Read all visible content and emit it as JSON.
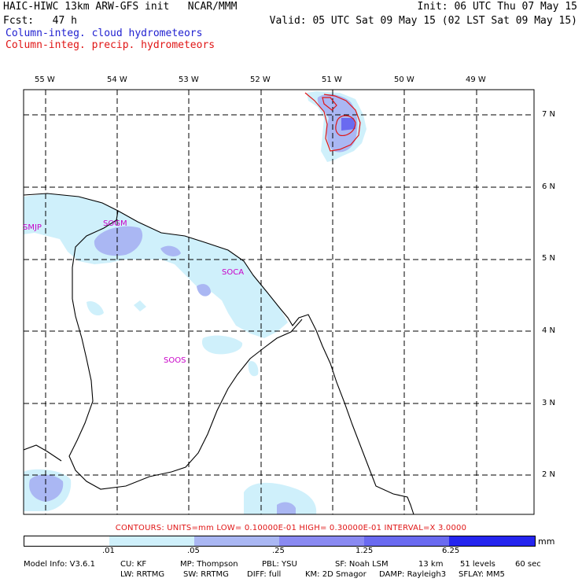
{
  "header": {
    "line1_left": "HAIC-HIWC 13km ARW-GFS init   NCAR/MMM",
    "line2_left": "Fcst:   47 h",
    "line1_right": "Init: 06 UTC Thu 07 May 15",
    "line2_right": "Valid: 05 UTC Sat 09 May 15 (02 LST Sat 09 May 15)"
  },
  "legend": {
    "cloud": "Column-integ. cloud hydrometeors",
    "precip": "Column-integ. precip. hydrometeors",
    "cloud_color": "#1f1fd0",
    "precip_color": "#e01515"
  },
  "lon_labels": [
    "55 W",
    "54 W",
    "53 W",
    "52 W",
    "51 W",
    "50 W",
    "49 W"
  ],
  "lat_labels": [
    "7 N",
    "6 N",
    "5 N",
    "4 N",
    "3 N",
    "2 N"
  ],
  "stations": [
    "SMJP",
    "SOGM",
    "SOCA",
    "SOOS"
  ],
  "contours_line": "CONTOURS:  UNITS=mm   LOW= 0.10000E-01   HIGH= 0.30000E-01   INTERVAL=X   3.0000",
  "colorbar": {
    "ticks": [
      ".01",
      ".05",
      ".25",
      "1.25",
      "6.25"
    ],
    "units": "mm",
    "colors": [
      "#ffffff",
      "#cff0fb",
      "#aab7f3",
      "#6a6af0",
      "#2525ef"
    ]
  },
  "model_info": {
    "row1": [
      "Model Info: V3.6.1",
      "CU: KF",
      "MP: Thompson",
      "PBL: YSU",
      "SF: Noah LSM",
      "13 km",
      "51 levels",
      "60 sec"
    ],
    "row2": [
      "LW: RRTMG",
      "SW: RRTMG",
      "DIFF: full",
      "KM: 2D Smagor",
      "DAMP: Rayleigh3",
      "SFLAY: MM5"
    ]
  }
}
